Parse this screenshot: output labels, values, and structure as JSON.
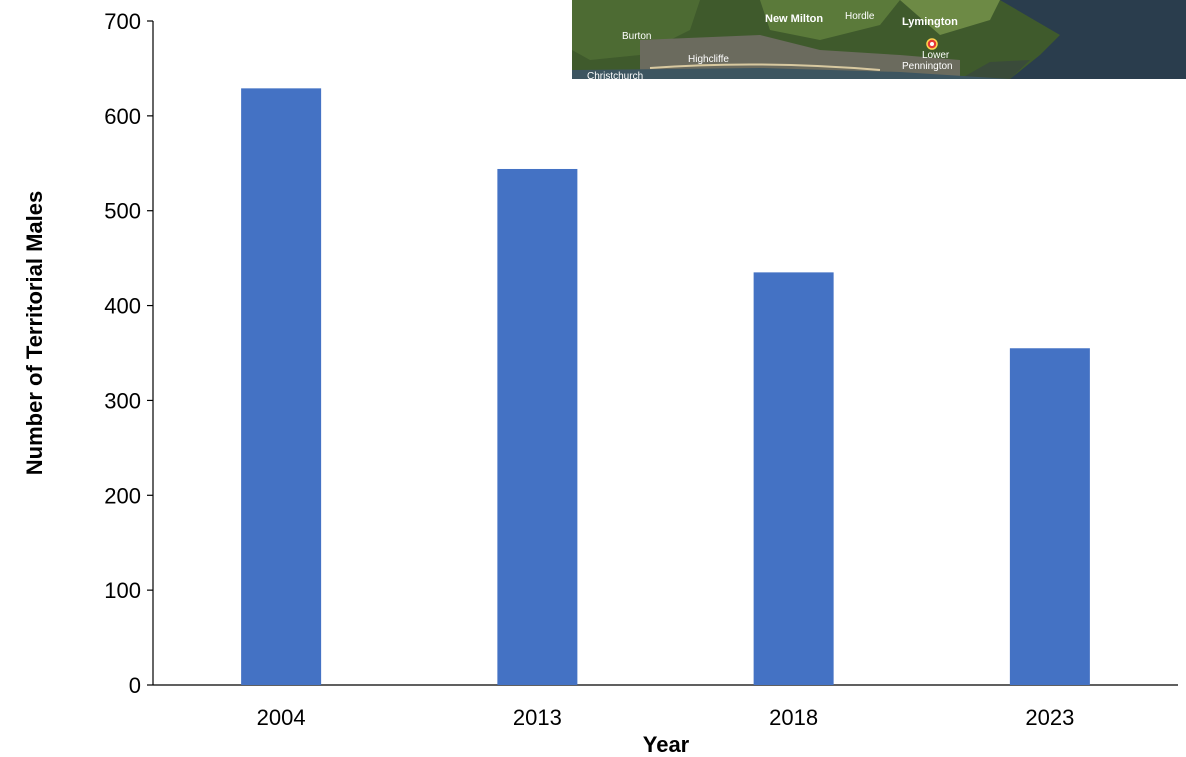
{
  "chart_data": {
    "type": "bar",
    "categories": [
      "2004",
      "2013",
      "2018",
      "2023"
    ],
    "values": [
      629,
      544,
      435,
      355
    ],
    "xlabel": "Year",
    "ylabel": "Number of Territorial Males",
    "ylim": [
      0,
      700
    ],
    "yticks": [
      "0",
      "100",
      "200",
      "300",
      "400",
      "500",
      "600",
      "700"
    ],
    "grid": false,
    "legend": "none",
    "bar_color": "#4472C4"
  },
  "map_inset": {
    "labels": {
      "burton": "Burton",
      "new_milton": "New Milton",
      "hordle": "Hordle",
      "lymington": "Lymington",
      "highcliffe": "Highcliffe",
      "christchurch": "Christchurch",
      "lower_pennington": "Lower Pennington"
    },
    "marker_icon": "map-pin-icon",
    "marker_color": "#e53935"
  }
}
